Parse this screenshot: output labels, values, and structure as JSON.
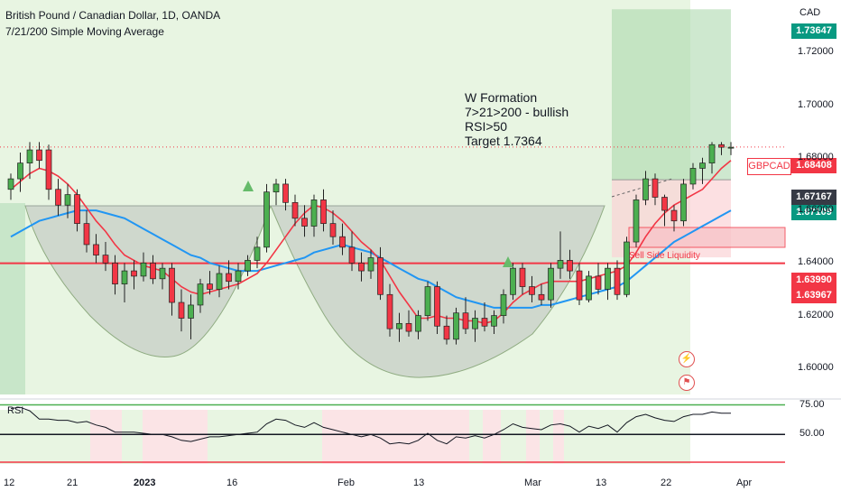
{
  "header": {
    "symbol_line": "British Pound / Canadian Dollar, 1D, OANDA",
    "indicator_line": "7/21/200 Simple Moving Average"
  },
  "currency": "CAD",
  "annotation": {
    "lines": [
      "W Formation",
      "7>21>200 - bullish",
      "RSI>50",
      "Target 1.7364"
    ]
  },
  "sell_side_label": "Sell Side Liquidity",
  "ticker_tag": "GBPCAD",
  "price_tags": [
    {
      "label": "1.73647",
      "value": 1.73647,
      "color": "#089981"
    },
    {
      "label": "1.68408",
      "value": 1.68408,
      "color": "#f23645"
    },
    {
      "label": "1.67167",
      "value": 1.67167,
      "color": "#363a45"
    },
    {
      "label": "1.67109",
      "value": 1.67109,
      "color": "#089981"
    },
    {
      "label": "1.63990",
      "value": 1.6399,
      "color": "#f23645"
    },
    {
      "label": "1.63967",
      "value": 1.63967,
      "color": "#f23645"
    }
  ],
  "rsi_label": "RSI",
  "colors": {
    "up": "#4caf50",
    "down": "#f23645",
    "sma_fast": "#f23645",
    "sma_slow": "#2196f3",
    "rsi": "#131722"
  },
  "chart_data": {
    "type": "candlestick",
    "title": "British Pound / Canadian Dollar, 1D, OANDA",
    "ylim": [
      1.59,
      1.74
    ],
    "y_ticks": [
      "1.72000",
      "1.70000",
      "1.68000",
      "1.66000",
      "1.64000",
      "1.62000",
      "1.60000"
    ],
    "x_ticks": [
      "12",
      "21",
      "2023",
      "16",
      "Feb",
      "13",
      "Mar",
      "13",
      "22",
      "Apr"
    ],
    "levels": {
      "horizontal_support": 1.6399,
      "last_price": 1.68408,
      "target": 1.73647,
      "entry": 1.67167,
      "stop": 1.67109
    },
    "ohlc": [
      [
        1.668,
        1.674,
        1.664,
        1.672
      ],
      [
        1.672,
        1.682,
        1.667,
        1.678
      ],
      [
        1.678,
        1.686,
        1.672,
        1.683
      ],
      [
        1.683,
        1.686,
        1.676,
        1.679
      ],
      [
        1.683,
        1.685,
        1.664,
        1.668
      ],
      [
        1.668,
        1.672,
        1.658,
        1.662
      ],
      [
        1.662,
        1.67,
        1.657,
        1.666
      ],
      [
        1.666,
        1.668,
        1.652,
        1.655
      ],
      [
        1.655,
        1.66,
        1.644,
        1.647
      ],
      [
        1.647,
        1.651,
        1.64,
        1.643
      ],
      [
        1.643,
        1.648,
        1.637,
        1.64
      ],
      [
        1.64,
        1.643,
        1.628,
        1.632
      ],
      [
        1.632,
        1.64,
        1.625,
        1.637
      ],
      [
        1.637,
        1.641,
        1.63,
        1.635
      ],
      [
        1.635,
        1.644,
        1.633,
        1.64
      ],
      [
        1.64,
        1.643,
        1.632,
        1.634
      ],
      [
        1.634,
        1.64,
        1.63,
        1.638
      ],
      [
        1.638,
        1.64,
        1.62,
        1.625
      ],
      [
        1.625,
        1.63,
        1.614,
        1.619
      ],
      [
        1.619,
        1.628,
        1.611,
        1.624
      ],
      [
        1.624,
        1.634,
        1.621,
        1.632
      ],
      [
        1.632,
        1.637,
        1.628,
        1.63
      ],
      [
        1.63,
        1.639,
        1.627,
        1.636
      ],
      [
        1.636,
        1.641,
        1.63,
        1.633
      ],
      [
        1.633,
        1.64,
        1.63,
        1.637
      ],
      [
        1.637,
        1.643,
        1.635,
        1.641
      ],
      [
        1.641,
        1.65,
        1.638,
        1.646
      ],
      [
        1.646,
        1.67,
        1.644,
        1.667
      ],
      [
        1.667,
        1.672,
        1.662,
        1.67
      ],
      [
        1.67,
        1.672,
        1.66,
        1.663
      ],
      [
        1.663,
        1.666,
        1.654,
        1.657
      ],
      [
        1.657,
        1.662,
        1.65,
        1.654
      ],
      [
        1.654,
        1.666,
        1.65,
        1.664
      ],
      [
        1.664,
        1.668,
        1.652,
        1.655
      ],
      [
        1.655,
        1.66,
        1.647,
        1.65
      ],
      [
        1.65,
        1.655,
        1.643,
        1.646
      ],
      [
        1.646,
        1.652,
        1.637,
        1.64
      ],
      [
        1.64,
        1.644,
        1.633,
        1.637
      ],
      [
        1.637,
        1.645,
        1.634,
        1.642
      ],
      [
        1.642,
        1.646,
        1.626,
        1.628
      ],
      [
        1.628,
        1.632,
        1.612,
        1.615
      ],
      [
        1.615,
        1.621,
        1.61,
        1.617
      ],
      [
        1.617,
        1.622,
        1.612,
        1.614
      ],
      [
        1.614,
        1.622,
        1.611,
        1.62
      ],
      [
        1.62,
        1.633,
        1.618,
        1.631
      ],
      [
        1.631,
        1.633,
        1.613,
        1.616
      ],
      [
        1.616,
        1.62,
        1.609,
        1.611
      ],
      [
        1.611,
        1.623,
        1.609,
        1.621
      ],
      [
        1.621,
        1.627,
        1.613,
        1.615
      ],
      [
        1.615,
        1.622,
        1.61,
        1.619
      ],
      [
        1.619,
        1.625,
        1.614,
        1.616
      ],
      [
        1.616,
        1.622,
        1.613,
        1.62
      ],
      [
        1.62,
        1.63,
        1.617,
        1.628
      ],
      [
        1.628,
        1.64,
        1.626,
        1.638
      ],
      [
        1.638,
        1.64,
        1.628,
        1.631
      ],
      [
        1.631,
        1.635,
        1.625,
        1.628
      ],
      [
        1.628,
        1.632,
        1.624,
        1.626
      ],
      [
        1.626,
        1.64,
        1.623,
        1.638
      ],
      [
        1.638,
        1.652,
        1.634,
        1.641
      ],
      [
        1.641,
        1.645,
        1.634,
        1.637
      ],
      [
        1.637,
        1.64,
        1.624,
        1.626
      ],
      [
        1.626,
        1.637,
        1.625,
        1.635
      ],
      [
        1.635,
        1.64,
        1.628,
        1.63
      ],
      [
        1.63,
        1.64,
        1.626,
        1.638
      ],
      [
        1.638,
        1.641,
        1.626,
        1.628
      ],
      [
        1.628,
        1.65,
        1.627,
        1.648
      ],
      [
        1.648,
        1.666,
        1.646,
        1.664
      ],
      [
        1.664,
        1.675,
        1.662,
        1.672
      ],
      [
        1.672,
        1.674,
        1.662,
        1.665
      ],
      [
        1.665,
        1.666,
        1.654,
        1.66
      ],
      [
        1.66,
        1.662,
        1.652,
        1.656
      ],
      [
        1.656,
        1.672,
        1.654,
        1.67
      ],
      [
        1.67,
        1.678,
        1.668,
        1.676
      ],
      [
        1.676,
        1.68,
        1.67,
        1.678
      ],
      [
        1.678,
        1.686,
        1.674,
        1.685
      ],
      [
        1.685,
        1.686,
        1.681,
        1.684
      ],
      [
        1.684,
        1.686,
        1.681,
        1.684
      ]
    ],
    "sma7": [
      1.668,
      1.671,
      1.674,
      1.676,
      1.675,
      1.673,
      1.67,
      1.666,
      1.661,
      1.656,
      1.652,
      1.647,
      1.643,
      1.641,
      1.639,
      1.638,
      1.637,
      1.634,
      1.631,
      1.629,
      1.628,
      1.629,
      1.63,
      1.631,
      1.632,
      1.634,
      1.636,
      1.64,
      1.645,
      1.65,
      1.655,
      1.659,
      1.662,
      1.661,
      1.659,
      1.656,
      1.652,
      1.648,
      1.645,
      1.641,
      1.635,
      1.629,
      1.624,
      1.619,
      1.619,
      1.62,
      1.619,
      1.619,
      1.618,
      1.618,
      1.617,
      1.618,
      1.621,
      1.625,
      1.628,
      1.63,
      1.632,
      1.633,
      1.633,
      1.633,
      1.633,
      1.634,
      1.635,
      1.636,
      1.637,
      1.639,
      1.644,
      1.65,
      1.655,
      1.659,
      1.662,
      1.664,
      1.666,
      1.668,
      1.672,
      1.676,
      1.679
    ],
    "sma21": [
      1.65,
      1.652,
      1.654,
      1.656,
      1.657,
      1.658,
      1.659,
      1.66,
      1.66,
      1.66,
      1.659,
      1.658,
      1.657,
      1.655,
      1.653,
      1.651,
      1.649,
      1.647,
      1.645,
      1.643,
      1.642,
      1.64,
      1.639,
      1.638,
      1.637,
      1.637,
      1.637,
      1.638,
      1.639,
      1.64,
      1.641,
      1.642,
      1.644,
      1.645,
      1.646,
      1.647,
      1.646,
      1.645,
      1.644,
      1.642,
      1.64,
      1.638,
      1.636,
      1.634,
      1.633,
      1.631,
      1.629,
      1.627,
      1.626,
      1.625,
      1.624,
      1.623,
      1.623,
      1.623,
      1.623,
      1.623,
      1.624,
      1.624,
      1.625,
      1.626,
      1.627,
      1.628,
      1.629,
      1.63,
      1.631,
      1.633,
      1.636,
      1.639,
      1.642,
      1.645,
      1.648,
      1.65,
      1.652,
      1.654,
      1.656,
      1.658,
      1.66
    ],
    "rsi": {
      "ylim": [
        25,
        80
      ],
      "levels": [
        75,
        50
      ],
      "values": [
        72,
        73,
        70,
        63,
        63,
        62,
        62,
        60,
        61,
        58,
        56,
        52,
        52,
        52,
        51,
        50,
        50,
        48,
        45,
        44,
        46,
        48,
        48,
        49,
        50,
        51,
        52,
        59,
        63,
        62,
        58,
        56,
        60,
        56,
        54,
        52,
        50,
        48,
        50,
        47,
        42,
        43,
        42,
        45,
        51,
        45,
        42,
        48,
        47,
        49,
        47,
        50,
        54,
        59,
        56,
        55,
        54,
        58,
        59,
        57,
        52,
        57,
        55,
        58,
        52,
        60,
        65,
        67,
        64,
        62,
        61,
        65,
        67,
        67,
        69,
        68,
        68
      ]
    }
  }
}
